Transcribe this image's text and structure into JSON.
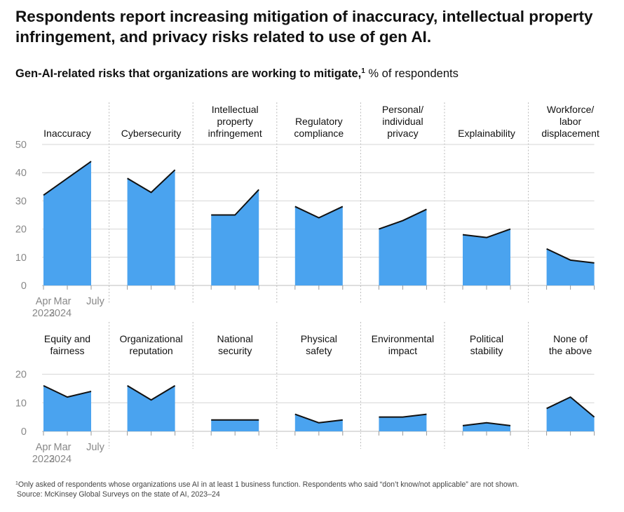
{
  "title": "Respondents report increasing mitigation of inaccuracy, intellectual property infringement, and privacy risks related to use of gen AI.",
  "subtitle": {
    "bold": "Gen-AI-related risks that organizations are working to mitigate,",
    "footnote_mark": "1",
    "rest": " % of respondents"
  },
  "footnote": {
    "mark": "1",
    "text": "Only asked of respondents whose organizations use AI in at least 1 business function. Respondents who said “don’t know/not applicable” are not shown.",
    "source": "Source: McKinsey Global Surveys on the state of AI, 2023–24"
  },
  "colors": {
    "fill": "#4aa3ef",
    "line": "#111111",
    "gridline": "#d6d6d6",
    "separator": "#bbbbbb",
    "axis_text": "#888888"
  },
  "chart_data": {
    "type": "area",
    "x": [
      "Apr 2023",
      "Mar 2024",
      "July 2024"
    ],
    "x_tick_labels": [
      {
        "line1": "Apr",
        "line2": "2023"
      },
      {
        "line1": "Mar",
        "line2": "2024"
      },
      {
        "line1": "July",
        "line2": ""
      }
    ],
    "rows": [
      {
        "y_ticks": [
          0,
          10,
          20,
          30,
          40,
          50
        ],
        "ylim": [
          0,
          50
        ],
        "panels": [
          {
            "name": "Inaccuracy",
            "label_lines": [
              "Inaccuracy"
            ],
            "values": [
              32,
              38,
              44
            ]
          },
          {
            "name": "Cybersecurity",
            "label_lines": [
              "Cybersecurity"
            ],
            "values": [
              38,
              33,
              41
            ]
          },
          {
            "name": "Intellectual property infringement",
            "label_lines": [
              "Intellectual",
              "property",
              "infringement"
            ],
            "values": [
              25,
              25,
              34
            ]
          },
          {
            "name": "Regulatory compliance",
            "label_lines": [
              "Regulatory",
              "compliance"
            ],
            "values": [
              28,
              24,
              28
            ]
          },
          {
            "name": "Personal/individual privacy",
            "label_lines": [
              "Personal/",
              "individual",
              "privacy"
            ],
            "values": [
              20,
              23,
              27
            ]
          },
          {
            "name": "Explainability",
            "label_lines": [
              "Explainability"
            ],
            "values": [
              18,
              17,
              20
            ]
          },
          {
            "name": "Workforce/labor displacement",
            "label_lines": [
              "Workforce/",
              "labor",
              "displacement"
            ],
            "values": [
              13,
              9,
              8
            ]
          }
        ]
      },
      {
        "y_ticks": [
          0,
          10,
          20
        ],
        "ylim": [
          0,
          20
        ],
        "panels": [
          {
            "name": "Equity and fairness",
            "label_lines": [
              "Equity and",
              "fairness"
            ],
            "values": [
              16,
              12,
              14
            ]
          },
          {
            "name": "Organizational reputation",
            "label_lines": [
              "Organizational",
              "reputation"
            ],
            "values": [
              16,
              11,
              16
            ]
          },
          {
            "name": "National security",
            "label_lines": [
              "National",
              "security"
            ],
            "values": [
              4,
              4,
              4
            ]
          },
          {
            "name": "Physical safety",
            "label_lines": [
              "Physical",
              "safety"
            ],
            "values": [
              6,
              3,
              4
            ]
          },
          {
            "name": "Environmental impact",
            "label_lines": [
              "Environmental",
              "impact"
            ],
            "values": [
              5,
              5,
              6
            ]
          },
          {
            "name": "Political stability",
            "label_lines": [
              "Political",
              "stability"
            ],
            "values": [
              2,
              3,
              2
            ]
          },
          {
            "name": "None of the above",
            "label_lines": [
              "None of",
              "the above"
            ],
            "values": [
              8,
              12,
              5
            ]
          }
        ]
      }
    ]
  }
}
